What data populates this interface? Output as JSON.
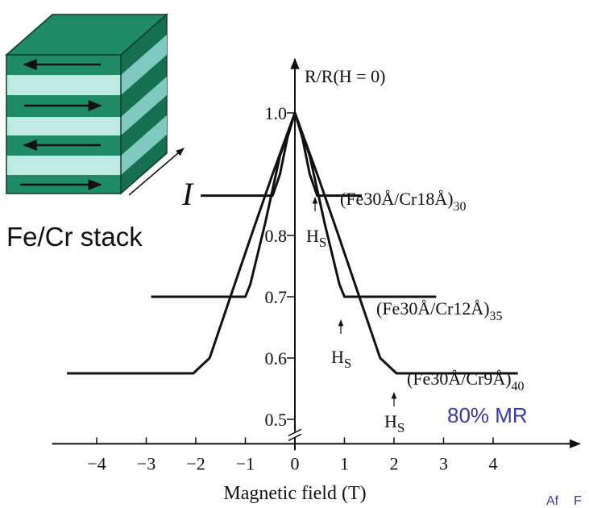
{
  "chart_data": {
    "type": "line",
    "y_label": "R/R(H = 0)",
    "x_label": "Magnetic field (T)",
    "xlim": [
      -4.9,
      5.75
    ],
    "ylim": [
      0.46,
      1.08
    ],
    "xticks": [
      {
        "value": -4,
        "label": "−4"
      },
      {
        "value": -3,
        "label": "−3"
      },
      {
        "value": -2,
        "label": "−2"
      },
      {
        "value": -1,
        "label": "−1"
      },
      0,
      1,
      2,
      3,
      4
    ],
    "yticks": [
      {
        "value": 1,
        "label": "1.0"
      },
      0.8,
      0.7,
      0.6,
      0.5
    ],
    "axis_break": true,
    "series": [
      {
        "name": "(Fe30Å/Cr18Å)",
        "subscript": "30",
        "color": "#111111",
        "x": [
          -1.9,
          -0.45,
          -0.3,
          -0.15,
          0,
          0.15,
          0.3,
          0.45,
          1.35
        ],
        "values": [
          0.865,
          0.865,
          0.9,
          0.96,
          1.0,
          0.96,
          0.9,
          0.865,
          0.865
        ]
      },
      {
        "name": "(Fe30Å/Cr12Å)",
        "subscript": "35",
        "color": "#111111",
        "x": [
          -2.9,
          -1.0,
          -0.9,
          -0.6,
          -0.3,
          0,
          0.3,
          0.6,
          0.9,
          1.0,
          2.85
        ],
        "values": [
          0.7,
          0.7,
          0.72,
          0.82,
          0.93,
          1.0,
          0.93,
          0.82,
          0.72,
          0.7,
          0.7
        ]
      },
      {
        "name": "(Fe30Å/Cr9Å)",
        "subscript": "40",
        "color": "#111111",
        "x": [
          -4.6,
          -2.05,
          -1.72,
          -1.3,
          -0.88,
          -0.45,
          0,
          0.45,
          0.88,
          1.3,
          1.72,
          2.05,
          4.5
        ],
        "values": [
          0.575,
          0.575,
          0.6,
          0.7,
          0.8,
          0.9,
          1.0,
          0.9,
          0.8,
          0.7,
          0.6,
          0.575,
          0.575
        ]
      }
    ],
    "annotations": [
      {
        "text": "H",
        "subscript": "S"
      },
      {
        "text": "H",
        "subscript": "S"
      },
      {
        "text": "H",
        "subscript": "S"
      }
    ]
  },
  "illustration": {
    "caption": "Fe/Cr stack",
    "current": "I"
  },
  "note": "80% MR",
  "footer": [
    "Af",
    "F"
  ]
}
